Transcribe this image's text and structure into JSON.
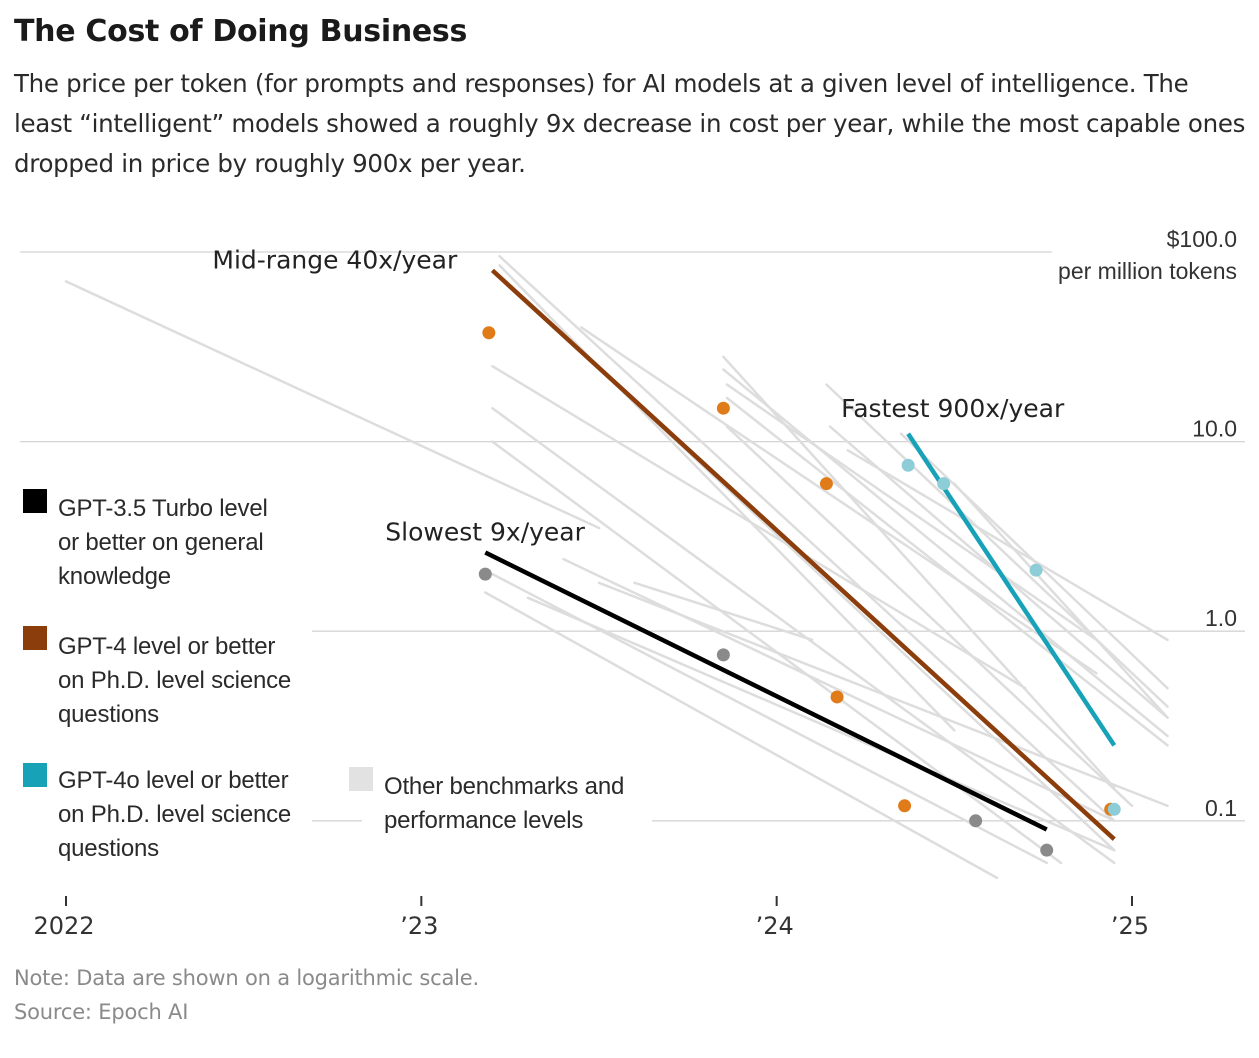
{
  "title": "The Cost of Doing Business",
  "subtitle": "The price per token (for prompts and responses) for AI models at a given level of intelligence. The least “intelligent” models showed a roughly 9x decrease in cost per year, while the most capable ones dropped in price by roughly 900x per year.",
  "note": "Note: Data are shown on a logarithmic scale.",
  "source": "Source: Epoch AI",
  "legend": [
    {
      "key": "gpt35",
      "label_lines": [
        "GPT-3.5 Turbo level",
        "or better on general",
        "knowledge"
      ],
      "color": "#000000"
    },
    {
      "key": "gpt4",
      "label_lines": [
        "GPT-4 level or better",
        "on Ph.D. level science",
        "questions"
      ],
      "color": "#8b3e0b"
    },
    {
      "key": "gpt4o",
      "label_lines": [
        "GPT-4o level or better",
        "on Ph.D. level science",
        "questions"
      ],
      "color": "#17a2b8"
    },
    {
      "key": "other",
      "label_lines": [
        "Other benchmarks and",
        "performance levels"
      ],
      "color": "#e2e2e2"
    }
  ],
  "chart_data": {
    "type": "scatter",
    "y_scale": "log",
    "y_unit_label": "per million tokens",
    "y_ticks": [
      {
        "value": 100,
        "label": "$100.0"
      },
      {
        "value": 10,
        "label": "10.0"
      },
      {
        "value": 1,
        "label": "1.0"
      },
      {
        "value": 0.1,
        "label": "0.1"
      }
    ],
    "x_ticks": [
      {
        "value": 2022.0,
        "label": "2022"
      },
      {
        "value": 2023.0,
        "label": "’23"
      },
      {
        "value": 2024.0,
        "label": "’24"
      },
      {
        "value": 2025.0,
        "label": "’25"
      }
    ],
    "xlim": [
      2022.0,
      2025.4
    ],
    "ylim": [
      0.045,
      100
    ],
    "series": [
      {
        "key": "gpt35",
        "color": "#000000",
        "point_color": "#8a8a8a",
        "annotation": "Slowest 9x/year",
        "trend": [
          [
            2023.18,
            2.6
          ],
          [
            2024.76,
            0.09
          ]
        ],
        "points": [
          [
            2023.18,
            2.0
          ],
          [
            2023.85,
            0.75
          ],
          [
            2024.56,
            0.1
          ],
          [
            2024.76,
            0.07
          ]
        ]
      },
      {
        "key": "gpt4",
        "color": "#8b3e0b",
        "point_color": "#e07b1a",
        "annotation": "Mid-range 40x/year",
        "trend": [
          [
            2023.2,
            80
          ],
          [
            2024.95,
            0.08
          ]
        ],
        "points": [
          [
            2023.19,
            37.5
          ],
          [
            2023.85,
            15.0
          ],
          [
            2024.14,
            6.0
          ],
          [
            2024.17,
            0.45
          ],
          [
            2024.36,
            0.12
          ],
          [
            2024.94,
            0.115
          ]
        ]
      },
      {
        "key": "gpt4o",
        "color": "#17a2b8",
        "point_color": "#8ccdd8",
        "annotation": "Fastest 900x/year",
        "trend": [
          [
            2024.37,
            11.0
          ],
          [
            2024.95,
            0.25
          ]
        ],
        "points": [
          [
            2024.37,
            7.5
          ],
          [
            2024.47,
            6.0
          ],
          [
            2024.73,
            2.1
          ],
          [
            2024.95,
            0.115
          ]
        ]
      }
    ],
    "other_lines": [
      [
        [
          2022.0,
          70
        ],
        [
          2023.5,
          3.5
        ]
      ],
      [
        [
          2023.22,
          95
        ],
        [
          2024.95,
          0.1
        ]
      ],
      [
        [
          2023.22,
          85
        ],
        [
          2024.5,
          0.3
        ]
      ],
      [
        [
          2023.22,
          75
        ],
        [
          2024.95,
          0.07
        ]
      ],
      [
        [
          2023.2,
          25
        ],
        [
          2024.7,
          0.5
        ]
      ],
      [
        [
          2023.2,
          15
        ],
        [
          2024.95,
          0.06
        ]
      ],
      [
        [
          2023.45,
          40
        ],
        [
          2024.9,
          0.6
        ]
      ],
      [
        [
          2023.85,
          28
        ],
        [
          2024.95,
          0.15
        ]
      ],
      [
        [
          2023.85,
          24
        ],
        [
          2025.1,
          0.28
        ]
      ],
      [
        [
          2023.86,
          20
        ],
        [
          2024.9,
          0.9
        ]
      ],
      [
        [
          2023.86,
          17
        ],
        [
          2025.1,
          0.25
        ]
      ],
      [
        [
          2023.86,
          12
        ],
        [
          2025.0,
          0.12
        ]
      ],
      [
        [
          2024.14,
          20
        ],
        [
          2025.1,
          0.4
        ]
      ],
      [
        [
          2024.15,
          12
        ],
        [
          2025.1,
          0.35
        ]
      ],
      [
        [
          2024.2,
          9
        ],
        [
          2025.1,
          0.9
        ]
      ],
      [
        [
          2024.35,
          11
        ],
        [
          2025.1,
          0.5
        ]
      ],
      [
        [
          2024.5,
          6
        ],
        [
          2025.1,
          0.35
        ]
      ],
      [
        [
          2023.5,
          1.8
        ],
        [
          2025.1,
          0.12
        ]
      ],
      [
        [
          2023.4,
          2.4
        ],
        [
          2024.95,
          0.1
        ]
      ],
      [
        [
          2023.2,
          2.0
        ],
        [
          2024.76,
          0.06
        ]
      ],
      [
        [
          2023.3,
          1.5
        ],
        [
          2024.95,
          0.07
        ]
      ],
      [
        [
          2023.6,
          1.8
        ],
        [
          2024.1,
          0.9
        ]
      ],
      [
        [
          2023.2,
          10
        ],
        [
          2024.8,
          0.06
        ]
      ],
      [
        [
          2023.18,
          1.6
        ],
        [
          2024.62,
          0.05
        ]
      ]
    ]
  }
}
